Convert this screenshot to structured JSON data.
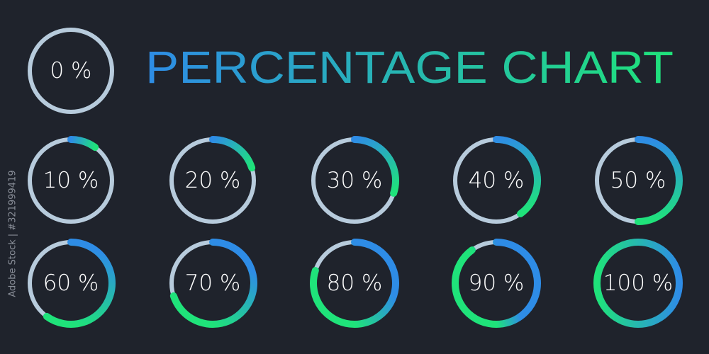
{
  "title": "PERCENTAGE CHART",
  "side_text": "Adobe Stock | #321999419",
  "colors": {
    "start": "#2e8ce6",
    "end": "#1fe37a",
    "track": "#b7cbdc"
  },
  "chart_data": [
    {
      "type": "ring",
      "value": 0,
      "value_label": "0 %"
    },
    {
      "type": "ring",
      "value": 10,
      "value_label": "10 %"
    },
    {
      "type": "ring",
      "value": 20,
      "value_label": "20 %"
    },
    {
      "type": "ring",
      "value": 30,
      "value_label": "30 %"
    },
    {
      "type": "ring",
      "value": 40,
      "value_label": "40 %"
    },
    {
      "type": "ring",
      "value": 50,
      "value_label": "50 %"
    },
    {
      "type": "ring",
      "value": 60,
      "value_label": "60 %"
    },
    {
      "type": "ring",
      "value": 70,
      "value_label": "70 %"
    },
    {
      "type": "ring",
      "value": 80,
      "value_label": "80 %"
    },
    {
      "type": "ring",
      "value": 90,
      "value_label": "90 %"
    },
    {
      "type": "ring",
      "value": 100,
      "value_label": "100 %"
    }
  ]
}
